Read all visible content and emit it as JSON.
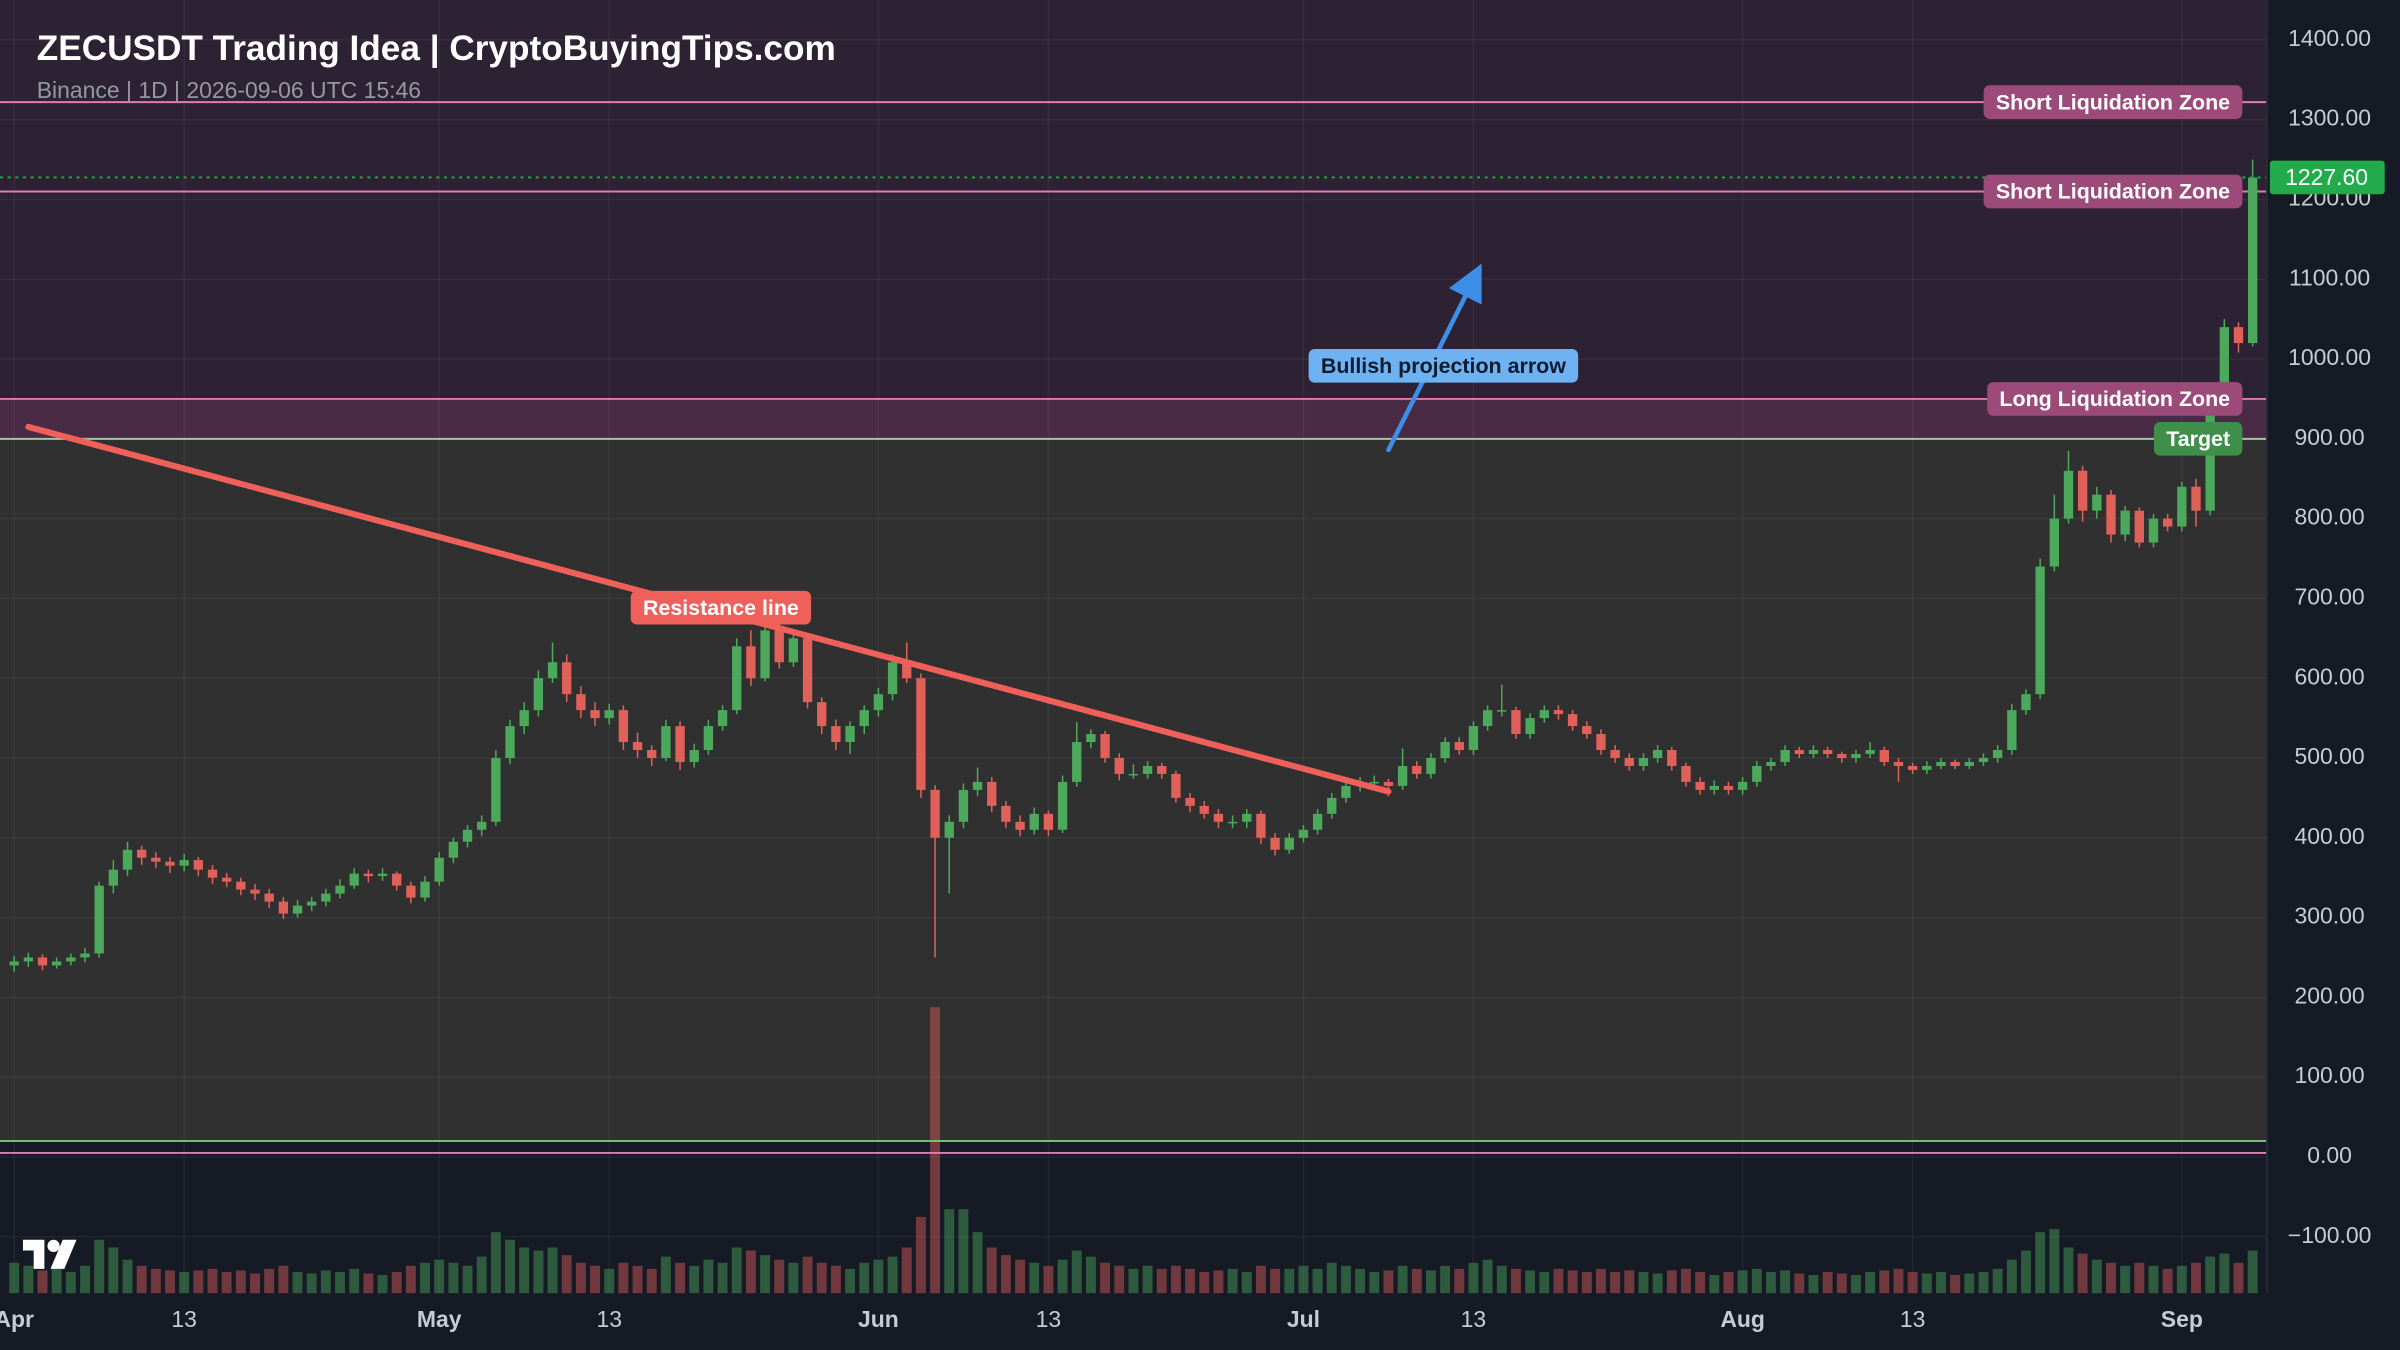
{
  "chart_data": {
    "type": "candlestick",
    "title": "ZECUSDT Trading Idea | CryptoBuyingTips.com",
    "subtitle": "Binance | 1D | 2026-09-06 UTC 15:46",
    "up_color": "#4ca85a",
    "down_color": "#e0605a",
    "grid": true,
    "xlim": [
      "2026-03-31",
      "2026-09-07"
    ],
    "xticks": [
      {
        "value": "2026-04-01",
        "label": "Apr"
      },
      {
        "value": "2026-04-13",
        "label": "13"
      },
      {
        "value": "2026-05-01",
        "label": "May"
      },
      {
        "value": "2026-05-13",
        "label": "13"
      },
      {
        "value": "2026-06-01",
        "label": "Jun"
      },
      {
        "value": "2026-06-13",
        "label": "13"
      },
      {
        "value": "2026-07-01",
        "label": "Jul"
      },
      {
        "value": "2026-07-13",
        "label": "13"
      },
      {
        "value": "2026-08-01",
        "label": "Aug"
      },
      {
        "value": "2026-08-13",
        "label": "13"
      },
      {
        "value": "2026-09-01",
        "label": "Sep"
      }
    ],
    "ylim": [
      -171,
      1450
    ],
    "yticks": [
      {
        "value": -100,
        "label": "−100.00"
      },
      {
        "value": 0,
        "label": "0.00"
      },
      {
        "value": 100,
        "label": "100.00"
      },
      {
        "value": 200,
        "label": "200.00"
      },
      {
        "value": 300,
        "label": "300.00"
      },
      {
        "value": 400,
        "label": "400.00"
      },
      {
        "value": 500,
        "label": "500.00"
      },
      {
        "value": 600,
        "label": "600.00"
      },
      {
        "value": 700,
        "label": "700.00"
      },
      {
        "value": 800,
        "label": "800.00"
      },
      {
        "value": 900,
        "label": "900.00"
      },
      {
        "value": 1000,
        "label": "1000.00"
      },
      {
        "value": 1100,
        "label": "1100.00"
      },
      {
        "value": 1200,
        "label": "1200.00"
      },
      {
        "value": 1300,
        "label": "1300.00"
      },
      {
        "value": 1400,
        "label": "1400.00"
      }
    ],
    "zones": [
      {
        "from": 950,
        "to": 1450,
        "color": "#2d2233"
      },
      {
        "from": 900,
        "to": 950,
        "color": "#4a2b46"
      },
      {
        "from": 20,
        "to": 900,
        "color": "#2f302f"
      }
    ],
    "levels": [
      {
        "value": 1322,
        "label": "Short Liquidation Zone",
        "color": "#e07bb5",
        "box": "#9b4a7a"
      },
      {
        "value": 1210,
        "label": "Short Liquidation Zone",
        "color": "#e07bb5",
        "box": "#9b4a7a"
      },
      {
        "value": 950,
        "label": "Long Liquidation Zone",
        "color": "#e07bb5",
        "box": "#9b4a7a"
      },
      {
        "value": 900,
        "label": "Target",
        "color": "#9fc79f",
        "box": "#3f8f4a"
      },
      {
        "value": 20,
        "color": "#6ec46e"
      },
      {
        "value": 5,
        "color": "#e07bb5"
      }
    ],
    "last_price": {
      "value": 1227.6,
      "label": "1227.60",
      "color": "#22ab4a"
    },
    "annotations": [
      {
        "kind": "line",
        "label": "Resistance line",
        "color": "#f0605a",
        "from": [
          "2026-04-02",
          915
        ],
        "to": [
          "2026-07-07",
          458
        ]
      },
      {
        "kind": "arrow",
        "label": "Bullish projection arrow",
        "color": "#3d8ee6",
        "from": [
          "2026-07-07",
          886
        ],
        "to": [
          "2026-07-13",
          1099
        ]
      }
    ],
    "x": [
      "2026-04-01",
      "2026-04-02",
      "2026-04-03",
      "2026-04-04",
      "2026-04-05",
      "2026-04-06",
      "2026-04-07",
      "2026-04-08",
      "2026-04-09",
      "2026-04-10",
      "2026-04-11",
      "2026-04-12",
      "2026-04-13",
      "2026-04-14",
      "2026-04-15",
      "2026-04-16",
      "2026-04-17",
      "2026-04-18",
      "2026-04-19",
      "2026-04-20",
      "2026-04-21",
      "2026-04-22",
      "2026-04-23",
      "2026-04-24",
      "2026-04-25",
      "2026-04-26",
      "2026-04-27",
      "2026-04-28",
      "2026-04-29",
      "2026-04-30",
      "2026-05-01",
      "2026-05-02",
      "2026-05-03",
      "2026-05-04",
      "2026-05-05",
      "2026-05-06",
      "2026-05-07",
      "2026-05-08",
      "2026-05-09",
      "2026-05-10",
      "2026-05-11",
      "2026-05-12",
      "2026-05-13",
      "2026-05-14",
      "2026-05-15",
      "2026-05-16",
      "2026-05-17",
      "2026-05-18",
      "2026-05-19",
      "2026-05-20",
      "2026-05-21",
      "2026-05-22",
      "2026-05-23",
      "2026-05-24",
      "2026-05-25",
      "2026-05-26",
      "2026-05-27",
      "2026-05-28",
      "2026-05-29",
      "2026-05-30",
      "2026-05-31",
      "2026-06-01",
      "2026-06-02",
      "2026-06-03",
      "2026-06-04",
      "2026-06-05",
      "2026-06-06",
      "2026-06-07",
      "2026-06-08",
      "2026-06-09",
      "2026-06-10",
      "2026-06-11",
      "2026-06-12",
      "2026-06-13",
      "2026-06-14",
      "2026-06-15",
      "2026-06-16",
      "2026-06-17",
      "2026-06-18",
      "2026-06-19",
      "2026-06-20",
      "2026-06-21",
      "2026-06-22",
      "2026-06-23",
      "2026-06-24",
      "2026-06-25",
      "2026-06-26",
      "2026-06-27",
      "2026-06-28",
      "2026-06-29",
      "2026-06-30",
      "2026-07-01",
      "2026-07-02",
      "2026-07-03",
      "2026-07-04",
      "2026-07-05",
      "2026-07-06",
      "2026-07-07",
      "2026-07-08",
      "2026-07-09",
      "2026-07-10",
      "2026-07-11",
      "2026-07-12",
      "2026-07-13",
      "2026-07-14",
      "2026-07-15",
      "2026-07-16",
      "2026-07-17",
      "2026-07-18",
      "2026-07-19",
      "2026-07-20",
      "2026-07-21",
      "2026-07-22",
      "2026-07-23",
      "2026-07-24",
      "2026-07-25",
      "2026-07-26",
      "2026-07-27",
      "2026-07-28",
      "2026-07-29",
      "2026-07-30",
      "2026-07-31",
      "2026-08-01",
      "2026-08-02",
      "2026-08-03",
      "2026-08-04",
      "2026-08-05",
      "2026-08-06",
      "2026-08-07",
      "2026-08-08",
      "2026-08-09",
      "2026-08-10",
      "2026-08-11",
      "2026-08-12",
      "2026-08-13",
      "2026-08-14",
      "2026-08-15",
      "2026-08-16",
      "2026-08-17",
      "2026-08-18",
      "2026-08-19",
      "2026-08-20",
      "2026-08-21",
      "2026-08-22",
      "2026-08-23",
      "2026-08-24",
      "2026-08-25",
      "2026-08-26",
      "2026-08-27",
      "2026-08-28",
      "2026-08-29",
      "2026-08-30",
      "2026-08-31",
      "2026-09-01",
      "2026-09-02",
      "2026-09-03",
      "2026-09-04",
      "2026-09-05",
      "2026-09-06"
    ],
    "candles": [
      [
        240,
        252,
        232,
        245
      ],
      [
        245,
        256,
        238,
        250
      ],
      [
        250,
        254,
        234,
        240
      ],
      [
        240,
        250,
        236,
        245
      ],
      [
        245,
        255,
        240,
        250
      ],
      [
        250,
        262,
        244,
        255
      ],
      [
        255,
        345,
        250,
        340
      ],
      [
        340,
        372,
        330,
        360
      ],
      [
        360,
        395,
        352,
        385
      ],
      [
        385,
        390,
        366,
        375
      ],
      [
        375,
        382,
        362,
        370
      ],
      [
        370,
        376,
        356,
        365
      ],
      [
        365,
        380,
        358,
        372
      ],
      [
        372,
        376,
        352,
        360
      ],
      [
        360,
        366,
        342,
        350
      ],
      [
        350,
        356,
        338,
        345
      ],
      [
        345,
        350,
        328,
        335
      ],
      [
        335,
        342,
        322,
        330
      ],
      [
        330,
        336,
        312,
        320
      ],
      [
        320,
        326,
        298,
        305
      ],
      [
        305,
        322,
        300,
        315
      ],
      [
        315,
        326,
        308,
        320
      ],
      [
        320,
        336,
        314,
        330
      ],
      [
        330,
        348,
        324,
        340
      ],
      [
        340,
        362,
        336,
        355
      ],
      [
        355,
        360,
        344,
        352
      ],
      [
        352,
        362,
        346,
        355
      ],
      [
        355,
        358,
        334,
        340
      ],
      [
        340,
        345,
        318,
        325
      ],
      [
        325,
        352,
        320,
        345
      ],
      [
        345,
        382,
        340,
        375
      ],
      [
        375,
        400,
        368,
        395
      ],
      [
        395,
        416,
        388,
        410
      ],
      [
        410,
        428,
        402,
        420
      ],
      [
        420,
        510,
        415,
        500
      ],
      [
        500,
        548,
        492,
        540
      ],
      [
        540,
        570,
        530,
        560
      ],
      [
        560,
        610,
        552,
        600
      ],
      [
        600,
        645,
        594,
        620
      ],
      [
        620,
        630,
        570,
        580
      ],
      [
        580,
        590,
        550,
        560
      ],
      [
        560,
        570,
        540,
        550
      ],
      [
        550,
        568,
        542,
        560
      ],
      [
        560,
        566,
        510,
        520
      ],
      [
        520,
        532,
        500,
        510
      ],
      [
        510,
        516,
        490,
        500
      ],
      [
        500,
        548,
        496,
        540
      ],
      [
        540,
        546,
        485,
        495
      ],
      [
        495,
        518,
        488,
        510
      ],
      [
        510,
        548,
        504,
        540
      ],
      [
        540,
        566,
        534,
        560
      ],
      [
        560,
        650,
        555,
        640
      ],
      [
        640,
        660,
        590,
        600
      ],
      [
        600,
        668,
        596,
        660
      ],
      [
        660,
        670,
        612,
        620
      ],
      [
        620,
        660,
        614,
        650
      ],
      [
        650,
        656,
        562,
        570
      ],
      [
        570,
        576,
        530,
        540
      ],
      [
        540,
        548,
        510,
        520
      ],
      [
        520,
        546,
        505,
        540
      ],
      [
        540,
        566,
        530,
        560
      ],
      [
        560,
        588,
        552,
        580
      ],
      [
        580,
        630,
        572,
        620
      ],
      [
        620,
        645,
        594,
        600
      ],
      [
        600,
        606,
        450,
        460
      ],
      [
        460,
        466,
        250,
        400
      ],
      [
        400,
        428,
        330,
        420
      ],
      [
        420,
        468,
        412,
        460
      ],
      [
        460,
        488,
        452,
        470
      ],
      [
        470,
        476,
        432,
        440
      ],
      [
        440,
        446,
        412,
        420
      ],
      [
        420,
        428,
        402,
        410
      ],
      [
        410,
        438,
        404,
        430
      ],
      [
        430,
        434,
        402,
        410
      ],
      [
        410,
        478,
        406,
        470
      ],
      [
        470,
        545,
        464,
        520
      ],
      [
        520,
        536,
        512,
        530
      ],
      [
        530,
        534,
        494,
        500
      ],
      [
        500,
        506,
        472,
        480
      ],
      [
        480,
        492,
        474,
        480
      ],
      [
        480,
        496,
        474,
        490
      ],
      [
        490,
        494,
        474,
        480
      ],
      [
        480,
        484,
        444,
        450
      ],
      [
        450,
        456,
        432,
        440
      ],
      [
        440,
        446,
        424,
        430
      ],
      [
        430,
        436,
        412,
        420
      ],
      [
        420,
        428,
        412,
        420
      ],
      [
        420,
        436,
        412,
        430
      ],
      [
        430,
        434,
        392,
        400
      ],
      [
        400,
        406,
        378,
        385
      ],
      [
        385,
        406,
        380,
        400
      ],
      [
        400,
        416,
        394,
        410
      ],
      [
        410,
        436,
        404,
        430
      ],
      [
        430,
        456,
        424,
        450
      ],
      [
        450,
        470,
        444,
        465
      ],
      [
        465,
        476,
        458,
        470
      ],
      [
        470,
        478,
        462,
        470
      ],
      [
        470,
        474,
        452,
        465
      ],
      [
        465,
        512,
        460,
        490
      ],
      [
        490,
        496,
        474,
        480
      ],
      [
        480,
        506,
        474,
        500
      ],
      [
        500,
        526,
        494,
        520
      ],
      [
        520,
        526,
        504,
        510
      ],
      [
        510,
        546,
        504,
        540
      ],
      [
        540,
        566,
        534,
        560
      ],
      [
        560,
        592,
        552,
        560
      ],
      [
        560,
        564,
        524,
        530
      ],
      [
        530,
        556,
        524,
        550
      ],
      [
        550,
        566,
        544,
        560
      ],
      [
        560,
        566,
        548,
        555
      ],
      [
        555,
        560,
        534,
        540
      ],
      [
        540,
        546,
        524,
        530
      ],
      [
        530,
        536,
        504,
        510
      ],
      [
        510,
        516,
        494,
        500
      ],
      [
        500,
        506,
        484,
        490
      ],
      [
        490,
        506,
        484,
        500
      ],
      [
        500,
        516,
        494,
        510
      ],
      [
        510,
        514,
        484,
        490
      ],
      [
        490,
        494,
        464,
        470
      ],
      [
        470,
        476,
        454,
        460
      ],
      [
        460,
        472,
        454,
        465
      ],
      [
        465,
        470,
        454,
        460
      ],
      [
        460,
        476,
        454,
        470
      ],
      [
        470,
        496,
        464,
        490
      ],
      [
        490,
        500,
        484,
        495
      ],
      [
        495,
        516,
        490,
        510
      ],
      [
        510,
        514,
        500,
        505
      ],
      [
        505,
        516,
        500,
        510
      ],
      [
        510,
        514,
        500,
        505
      ],
      [
        505,
        508,
        494,
        500
      ],
      [
        500,
        510,
        494,
        505
      ],
      [
        505,
        520,
        500,
        510
      ],
      [
        510,
        514,
        490,
        495
      ],
      [
        495,
        500,
        470,
        490
      ],
      [
        490,
        494,
        480,
        485
      ],
      [
        485,
        496,
        480,
        490
      ],
      [
        490,
        500,
        486,
        495
      ],
      [
        495,
        498,
        486,
        490
      ],
      [
        490,
        500,
        486,
        495
      ],
      [
        495,
        506,
        490,
        500
      ],
      [
        500,
        516,
        494,
        510
      ],
      [
        510,
        568,
        504,
        560
      ],
      [
        560,
        586,
        554,
        580
      ],
      [
        580,
        750,
        574,
        740
      ],
      [
        740,
        830,
        734,
        800
      ],
      [
        800,
        885,
        794,
        860
      ],
      [
        860,
        866,
        796,
        810
      ],
      [
        810,
        840,
        800,
        830
      ],
      [
        830,
        836,
        770,
        780
      ],
      [
        780,
        816,
        772,
        810
      ],
      [
        810,
        814,
        764,
        770
      ],
      [
        770,
        806,
        764,
        800
      ],
      [
        800,
        806,
        784,
        790
      ],
      [
        790,
        846,
        784,
        840
      ],
      [
        840,
        850,
        790,
        810
      ],
      [
        810,
        968,
        804,
        960
      ],
      [
        960,
        1050,
        952,
        1040
      ],
      [
        1040,
        1046,
        1008,
        1020
      ],
      [
        1020,
        1250,
        1016,
        1227.6
      ]
    ],
    "volume": [
      20,
      18,
      15,
      16,
      14,
      18,
      35,
      30,
      22,
      18,
      16,
      15,
      14,
      15,
      16,
      14,
      15,
      13,
      16,
      18,
      14,
      13,
      15,
      14,
      16,
      13,
      12,
      14,
      18,
      20,
      22,
      20,
      18,
      24,
      40,
      35,
      30,
      28,
      30,
      25,
      20,
      18,
      16,
      20,
      18,
      16,
      24,
      20,
      18,
      22,
      20,
      30,
      28,
      25,
      22,
      20,
      24,
      20,
      18,
      16,
      20,
      22,
      24,
      30,
      50,
      187,
      55,
      55,
      40,
      30,
      25,
      22,
      20,
      18,
      22,
      28,
      24,
      20,
      18,
      16,
      18,
      16,
      18,
      16,
      14,
      15,
      16,
      14,
      18,
      16,
      16,
      18,
      16,
      20,
      18,
      16,
      14,
      15,
      18,
      16,
      15,
      18,
      16,
      20,
      22,
      18,
      16,
      15,
      14,
      16,
      15,
      14,
      16,
      14,
      15,
      14,
      13,
      15,
      16,
      14,
      12,
      14,
      15,
      16,
      14,
      15,
      13,
      12,
      14,
      13,
      12,
      14,
      15,
      16,
      14,
      13,
      14,
      12,
      13,
      14,
      16,
      22,
      28,
      40,
      42,
      30,
      26,
      22,
      20,
      18,
      20,
      18,
      16,
      18,
      20,
      24,
      26,
      20,
      28
    ]
  }
}
